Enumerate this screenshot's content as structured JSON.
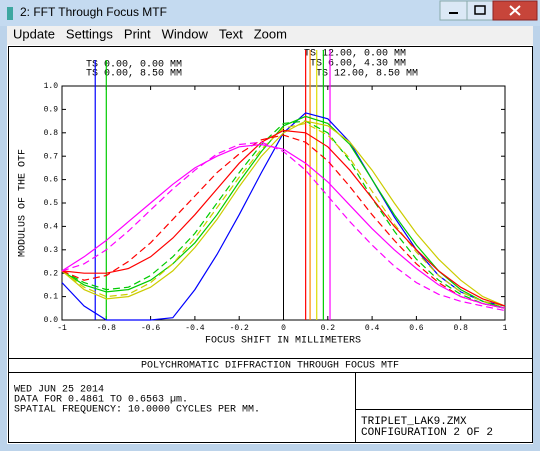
{
  "window": {
    "title": "2: FFT Through Focus MTF",
    "menu": [
      "Update",
      "Settings",
      "Print",
      "Window",
      "Text",
      "Zoom"
    ]
  },
  "chart_data": {
    "type": "line",
    "caption": "POLYCHROMATIC DIFFRACTION THROUGH FOCUS MTF",
    "xlabel": "FOCUS SHIFT IN MILLIMETERS",
    "ylabel": "MODULUS OF THE OTF",
    "annotations": [
      "TS 0.00, 0.00 MM",
      "TS 0.00, 8.50 MM",
      "TS 12.00, 0.00 MM",
      "TS 6.00, 4.30 MM",
      "TS 12.00, 8.50 MM"
    ],
    "focus_markers": [
      {
        "x": -0.85,
        "color": "#0000ff"
      },
      {
        "x": -0.8,
        "color": "#00cc00"
      },
      {
        "x": 0.1,
        "color": "#ff0000"
      },
      {
        "x": 0.12,
        "color": "#ff8800"
      },
      {
        "x": 0.15,
        "color": "#dddd00"
      },
      {
        "x": 0.18,
        "color": "#00cc00"
      },
      {
        "x": 0.21,
        "color": "#ff00ff"
      }
    ],
    "x": [
      -1,
      -0.9,
      -0.8,
      -0.7,
      -0.6,
      -0.5,
      -0.4,
      -0.3,
      -0.2,
      -0.1,
      0,
      0.1,
      0.2,
      0.3,
      0.4,
      0.5,
      0.6,
      0.7,
      0.8,
      0.9,
      1
    ],
    "series": [
      {
        "color": "#0000ff",
        "dash": false,
        "values": [
          0.16,
          0.06,
          0,
          0,
          0,
          0.01,
          0.13,
          0.28,
          0.45,
          0.63,
          0.8,
          0.885,
          0.86,
          0.76,
          0.6,
          0.44,
          0.3,
          0.19,
          0.12,
          0.08,
          0.06
        ]
      },
      {
        "color": "#00cc00",
        "dash": false,
        "values": [
          0.21,
          0.15,
          0.12,
          0.13,
          0.17,
          0.24,
          0.33,
          0.45,
          0.59,
          0.72,
          0.83,
          0.87,
          0.84,
          0.75,
          0.6,
          0.45,
          0.32,
          0.21,
          0.13,
          0.08,
          0.05
        ]
      },
      {
        "color": "#00cc00",
        "dash": true,
        "values": [
          0.21,
          0.16,
          0.13,
          0.14,
          0.19,
          0.27,
          0.37,
          0.5,
          0.63,
          0.75,
          0.84,
          0.85,
          0.8,
          0.68,
          0.52,
          0.38,
          0.26,
          0.17,
          0.11,
          0.07,
          0.05
        ]
      },
      {
        "color": "#cccc00",
        "dash": false,
        "values": [
          0.21,
          0.13,
          0.09,
          0.1,
          0.14,
          0.21,
          0.31,
          0.43,
          0.57,
          0.7,
          0.8,
          0.85,
          0.83,
          0.76,
          0.64,
          0.5,
          0.37,
          0.26,
          0.17,
          0.1,
          0.06
        ]
      },
      {
        "color": "#cccc00",
        "dash": true,
        "values": [
          0.21,
          0.14,
          0.1,
          0.11,
          0.16,
          0.24,
          0.35,
          0.48,
          0.61,
          0.73,
          0.82,
          0.84,
          0.79,
          0.69,
          0.55,
          0.41,
          0.29,
          0.19,
          0.12,
          0.08,
          0.06
        ]
      },
      {
        "color": "#ff0000",
        "dash": false,
        "values": [
          0.21,
          0.2,
          0.2,
          0.22,
          0.27,
          0.35,
          0.45,
          0.56,
          0.67,
          0.76,
          0.81,
          0.8,
          0.74,
          0.64,
          0.52,
          0.4,
          0.3,
          0.21,
          0.14,
          0.09,
          0.06
        ]
      },
      {
        "color": "#ff0000",
        "dash": true,
        "values": [
          0.21,
          0.17,
          0.19,
          0.25,
          0.33,
          0.43,
          0.53,
          0.63,
          0.71,
          0.77,
          0.79,
          0.76,
          0.68,
          0.57,
          0.45,
          0.34,
          0.24,
          0.16,
          0.1,
          0.07,
          0.05
        ]
      },
      {
        "color": "#ff00ff",
        "dash": false,
        "values": [
          0.21,
          0.27,
          0.34,
          0.42,
          0.5,
          0.58,
          0.65,
          0.7,
          0.74,
          0.75,
          0.73,
          0.67,
          0.59,
          0.49,
          0.39,
          0.3,
          0.22,
          0.15,
          0.1,
          0.07,
          0.05
        ]
      },
      {
        "color": "#ff00ff",
        "dash": true,
        "values": [
          0.21,
          0.24,
          0.3,
          0.38,
          0.47,
          0.56,
          0.64,
          0.71,
          0.75,
          0.76,
          0.72,
          0.64,
          0.53,
          0.42,
          0.32,
          0.23,
          0.16,
          0.11,
          0.08,
          0.06,
          0.04
        ]
      }
    ],
    "xlim": [
      -1,
      1
    ],
    "ylim": [
      0,
      1
    ],
    "xticks": [
      -1,
      -0.8,
      -0.6,
      -0.4,
      -0.2,
      0,
      0.2,
      0.4,
      0.6,
      0.8,
      1
    ],
    "yticks": [
      {
        "value": 0,
        "label": "0.0"
      },
      0.1,
      0.2,
      0.3,
      0.4,
      0.5,
      0.6,
      0.7,
      0.8,
      0.9,
      {
        "value": 1,
        "label": "1.0"
      }
    ],
    "info": [
      "WED JUN 25 2014",
      "DATA FOR 0.4861 TO 0.6563 µm.",
      "SPATIAL FREQUENCY: 10.0000 CYCLES PER MM."
    ],
    "file_box": [
      "TRIPLET_LAK9.ZMX",
      "CONFIGURATION 2 OF 2"
    ]
  }
}
